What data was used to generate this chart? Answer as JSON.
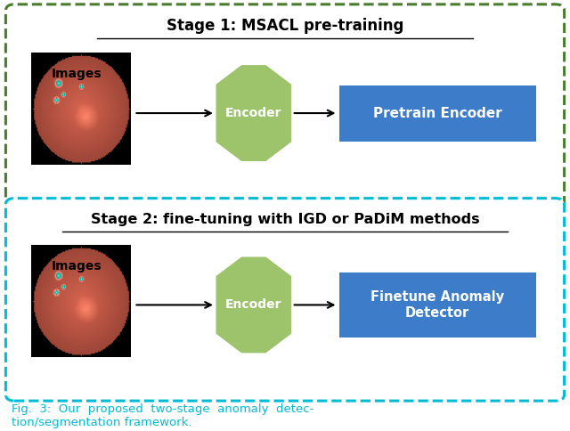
{
  "bg_color": "#ffffff",
  "stage1": {
    "title": "Stage 1: MSACL pre-training",
    "title_color": "#000000",
    "border_color": "#4a7c2f",
    "images_label": "Images",
    "encoder_color": "#9dc36b",
    "encoder_text": "Encoder",
    "pretrain_box_color": "#3d7cc9",
    "pretrain_text": "Pretrain Encoder"
  },
  "stage2": {
    "title": "Stage 2: fine-tuning with IGD or PaDiM methods",
    "title_color": "#000000",
    "border_color": "#00bcd4",
    "images_label": "Images",
    "encoder_color": "#9dc36b",
    "encoder_text": "Encoder",
    "finetune_box_color": "#3d7cc9",
    "finetune_text": "Finetune Anomaly\nDetector"
  },
  "caption_fig": "Fig.",
  "caption_num": "3",
  "caption_rest": ":  Our  proposed  two-stage  anomaly  detec-\ntion/segmentation framework.",
  "caption_color": "#00bcd4",
  "caption_text_color": "#000000"
}
